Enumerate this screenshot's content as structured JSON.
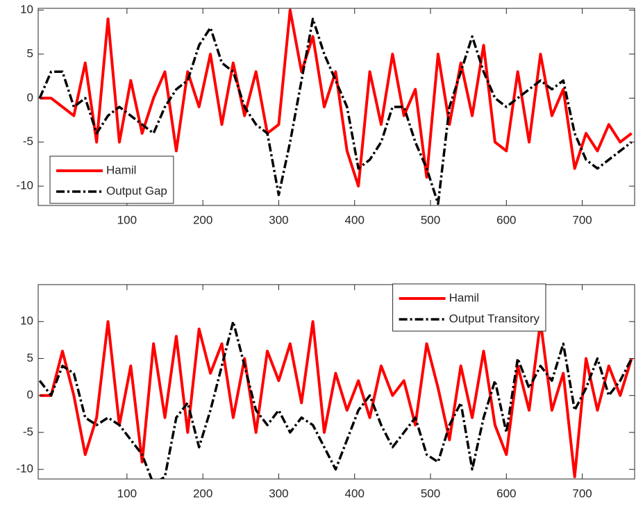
{
  "chart_data": [
    {
      "type": "line",
      "x": [
        -15,
        0,
        15,
        30,
        45,
        60,
        75,
        90,
        105,
        120,
        135,
        150,
        165,
        180,
        195,
        210,
        225,
        240,
        255,
        270,
        285,
        300,
        315,
        330,
        345,
        360,
        375,
        390,
        405,
        420,
        435,
        450,
        465,
        480,
        495,
        510,
        525,
        540,
        555,
        570,
        585,
        600,
        615,
        630,
        645,
        660,
        675,
        690,
        705,
        720,
        735,
        750,
        765
      ],
      "xlim": [
        -17,
        769
      ],
      "xticks": [
        100,
        200,
        300,
        400,
        500,
        600,
        700
      ],
      "ylim": [
        -12.2,
        10.2
      ],
      "yticks": [
        -10,
        -5,
        0,
        5,
        10
      ],
      "legend": "southwest",
      "grid": false,
      "series": [
        {
          "name": "Hamil",
          "color": "#ff0000",
          "style": "solid",
          "values": [
            0,
            0,
            -1,
            -2,
            4,
            -5,
            9,
            -5,
            2,
            -4,
            0,
            3,
            -6,
            3,
            -1,
            5,
            -3,
            4,
            -2,
            3,
            -4,
            -3,
            10,
            3,
            7,
            -1,
            3,
            -6,
            -10,
            3,
            -3,
            5,
            -2,
            1,
            -9,
            5,
            -3,
            4,
            -2,
            6,
            -5,
            -6,
            3,
            -5,
            5,
            -2,
            1,
            -8,
            -4,
            -6,
            -3,
            -5,
            -4
          ]
        },
        {
          "name": "Output Gap",
          "color": "#000000",
          "style": "dashdot",
          "values": [
            0,
            3,
            3,
            -1,
            0,
            -4,
            -2,
            -1,
            -2,
            -3,
            -4,
            -1,
            1,
            2,
            6,
            8,
            4,
            3,
            -1,
            -3,
            -4,
            -11,
            -5,
            2,
            9,
            5,
            2,
            -1,
            -8,
            -7,
            -5,
            -1,
            -1,
            -5,
            -8,
            -12,
            -1,
            3,
            7,
            3,
            0,
            -1,
            0,
            1,
            2,
            1,
            2,
            -4,
            -7,
            -8,
            -7,
            -6,
            -5
          ]
        }
      ]
    },
    {
      "type": "line",
      "x": [
        -15,
        0,
        15,
        30,
        45,
        60,
        75,
        90,
        105,
        120,
        135,
        150,
        165,
        180,
        195,
        210,
        225,
        240,
        255,
        270,
        285,
        300,
        315,
        330,
        345,
        360,
        375,
        390,
        405,
        420,
        435,
        450,
        465,
        480,
        495,
        510,
        525,
        540,
        555,
        570,
        585,
        600,
        615,
        630,
        645,
        660,
        675,
        690,
        705,
        720,
        735,
        750,
        765
      ],
      "xlim": [
        -17,
        769
      ],
      "xticks": [
        100,
        200,
        300,
        400,
        500,
        600,
        700
      ],
      "ylim": [
        -11.3,
        15
      ],
      "yticks": [
        -10,
        -5,
        0,
        5,
        10
      ],
      "legend": "northeast",
      "grid": false,
      "series": [
        {
          "name": "Hamil",
          "color": "#ff0000",
          "style": "solid",
          "values": [
            0,
            0,
            6,
            0,
            -8,
            -3,
            10,
            -4,
            4,
            -9,
            7,
            -3,
            8,
            -5,
            9,
            3,
            7,
            -3,
            5,
            -5,
            6,
            2,
            7,
            -1,
            10,
            -5,
            3,
            -2,
            2,
            -3,
            4,
            0,
            2,
            -4,
            7,
            1,
            -6,
            4,
            -3,
            6,
            -4,
            -8,
            4,
            -2,
            10,
            -2,
            3,
            -11,
            5,
            -2,
            4,
            0,
            5
          ]
        },
        {
          "name": "Output Transitory",
          "color": "#000000",
          "style": "dashdot",
          "values": [
            2,
            0,
            4,
            3,
            -3,
            -4,
            -3,
            -4,
            -6,
            -8,
            -12,
            -11,
            -3,
            -1,
            -7,
            -2,
            4,
            10,
            4,
            -2,
            -4,
            -2,
            -5,
            -3,
            -4,
            -7,
            -10,
            -6,
            -2,
            0,
            -4,
            -7,
            -5,
            -3,
            -8,
            -9,
            -4,
            -1,
            -10,
            -3,
            2,
            -5,
            5,
            1,
            4,
            2,
            7,
            -2,
            1,
            5,
            0,
            2,
            5
          ]
        }
      ]
    }
  ]
}
